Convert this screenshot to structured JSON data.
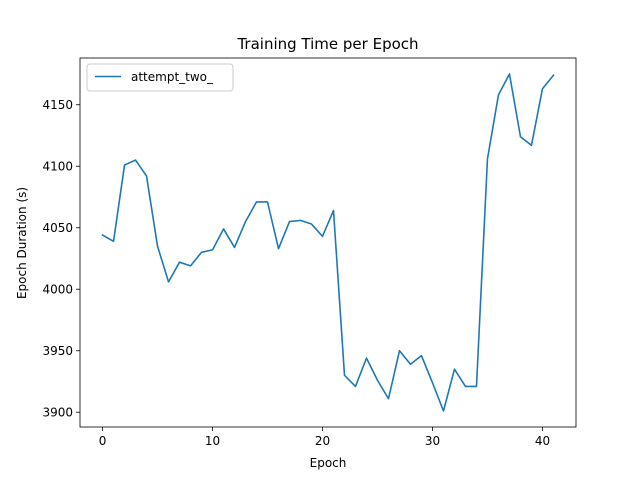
{
  "chart_data": {
    "type": "line",
    "title": "Training Time per Epoch",
    "xlabel": "Epoch",
    "ylabel": "Epoch Duration (s)",
    "xlim": [
      -2.05,
      43.05
    ],
    "ylim": [
      3888.0,
      4188.0
    ],
    "xticks": [
      0,
      10,
      20,
      30,
      40
    ],
    "yticks": [
      3900,
      3950,
      4000,
      4050,
      4100,
      4150
    ],
    "grid": false,
    "legend_position": "upper-left",
    "series": [
      {
        "name": "attempt_two_",
        "color": "#1f77b4",
        "x": [
          0,
          1,
          2,
          3,
          4,
          5,
          6,
          7,
          8,
          9,
          10,
          11,
          12,
          13,
          14,
          15,
          16,
          17,
          18,
          19,
          20,
          21,
          22,
          23,
          24,
          25,
          26,
          27,
          28,
          29,
          30,
          31,
          32,
          33,
          34,
          35,
          36,
          37,
          38,
          39,
          40,
          41
        ],
        "y": [
          4044,
          4039,
          4101,
          4105,
          4092,
          4035,
          4006,
          4022,
          4019,
          4030,
          4032,
          4049,
          4034,
          4055,
          4071,
          4071,
          4033,
          4055,
          4056,
          4053,
          4043,
          4064,
          3930,
          3921,
          3944,
          3926,
          3911,
          3950,
          3939,
          3946,
          3924,
          3901,
          3935,
          3921,
          3921,
          4106,
          4158,
          4175,
          4124,
          4117,
          4163,
          4174
        ]
      }
    ]
  }
}
